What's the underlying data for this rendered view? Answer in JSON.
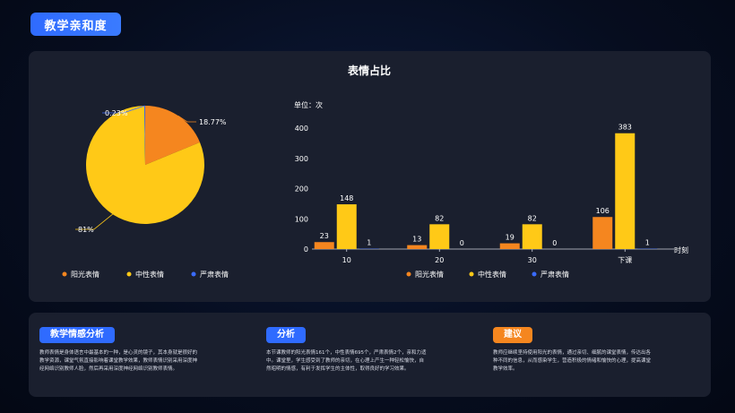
{
  "header": {
    "title": "教学亲和度"
  },
  "colors": {
    "sunny": "#f5861f",
    "neutral": "#ffc917",
    "serious": "#3a6bff"
  },
  "chart_data": [
    {
      "type": "pie",
      "title": "表情占比",
      "slices": [
        {
          "name": "阳光表情",
          "value": 18.77,
          "label": "18.77%",
          "color": "#f5861f"
        },
        {
          "name": "中性表情",
          "value": 81,
          "label": "81%",
          "color": "#ffc917"
        },
        {
          "name": "严肃表情",
          "value": 0.23,
          "label": "0.23%",
          "color": "#3a6bff"
        }
      ],
      "legend": [
        "阳光表情",
        "中性表情",
        "严肃表情"
      ],
      "legend_position": "bottom"
    },
    {
      "type": "bar",
      "unit_label": "单位：次",
      "xlabel": "时刻",
      "categories": [
        "10",
        "20",
        "30",
        "下课"
      ],
      "series": [
        {
          "name": "阳光表情",
          "values": [
            23,
            13,
            19,
            106
          ],
          "color": "#f5861f"
        },
        {
          "name": "中性表情",
          "values": [
            148,
            82,
            82,
            383
          ],
          "color": "#ffc917"
        },
        {
          "name": "严肃表情",
          "values": [
            1,
            0,
            0,
            1
          ],
          "color": "#3a6bff"
        }
      ],
      "ylim": [
        0,
        400
      ],
      "yticks": [
        0,
        100,
        200,
        300,
        400
      ],
      "grid": false,
      "legend_position": "bottom"
    }
  ],
  "panels": [
    {
      "title": "教学情感分析",
      "lines": [
        "教师表情是身体语言中最基本的一种，是心灵的镜子，其本身就是很好的",
        "教学资源，课堂气氛直接影响着课堂教学效果，教师表情识别采用深度神",
        "经网络识别教师人脸，然后再采用深度神经网络识别教师表情。"
      ]
    },
    {
      "title": "分析",
      "lines": [
        "本节课教师的阳光表情161个，中性表情695个，严肃表情2个，亲和力适",
        "中。课堂里，学生感受到了教师的亲切，在心理上产生一种轻松愉快，自",
        "然昭明的情感，有利于发挥学生的主体性，取得良好的学习效果。"
      ]
    },
    {
      "title": "建议",
      "lines": [
        "教师应继续坚持使用阳光的表情，通过亲切、细腻的课堂表情，传达出各",
        "种不同的信息，从而感染学生，营造积极的情绪和愉快的心理，提高课堂",
        "教学效率。"
      ]
    }
  ]
}
